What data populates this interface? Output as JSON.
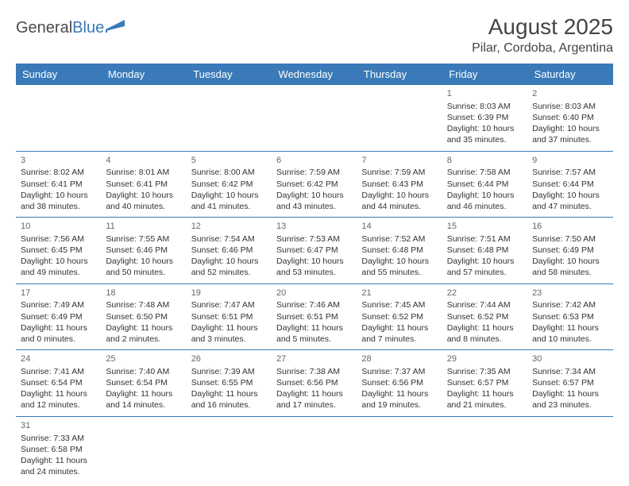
{
  "brand": {
    "general": "General",
    "blue": "Blue"
  },
  "title": "August 2025",
  "location": "Pilar, Cordoba, Argentina",
  "colors": {
    "header_bg": "#3a7ab8",
    "header_text": "#ffffff",
    "border": "#3a7ab8",
    "text": "#333333",
    "daynum": "#666666"
  },
  "day_headers": [
    "Sunday",
    "Monday",
    "Tuesday",
    "Wednesday",
    "Thursday",
    "Friday",
    "Saturday"
  ],
  "weeks": [
    [
      null,
      null,
      null,
      null,
      null,
      {
        "n": "1",
        "sr": "Sunrise: 8:03 AM",
        "ss": "Sunset: 6:39 PM",
        "d1": "Daylight: 10 hours",
        "d2": "and 35 minutes."
      },
      {
        "n": "2",
        "sr": "Sunrise: 8:03 AM",
        "ss": "Sunset: 6:40 PM",
        "d1": "Daylight: 10 hours",
        "d2": "and 37 minutes."
      }
    ],
    [
      {
        "n": "3",
        "sr": "Sunrise: 8:02 AM",
        "ss": "Sunset: 6:41 PM",
        "d1": "Daylight: 10 hours",
        "d2": "and 38 minutes."
      },
      {
        "n": "4",
        "sr": "Sunrise: 8:01 AM",
        "ss": "Sunset: 6:41 PM",
        "d1": "Daylight: 10 hours",
        "d2": "and 40 minutes."
      },
      {
        "n": "5",
        "sr": "Sunrise: 8:00 AM",
        "ss": "Sunset: 6:42 PM",
        "d1": "Daylight: 10 hours",
        "d2": "and 41 minutes."
      },
      {
        "n": "6",
        "sr": "Sunrise: 7:59 AM",
        "ss": "Sunset: 6:42 PM",
        "d1": "Daylight: 10 hours",
        "d2": "and 43 minutes."
      },
      {
        "n": "7",
        "sr": "Sunrise: 7:59 AM",
        "ss": "Sunset: 6:43 PM",
        "d1": "Daylight: 10 hours",
        "d2": "and 44 minutes."
      },
      {
        "n": "8",
        "sr": "Sunrise: 7:58 AM",
        "ss": "Sunset: 6:44 PM",
        "d1": "Daylight: 10 hours",
        "d2": "and 46 minutes."
      },
      {
        "n": "9",
        "sr": "Sunrise: 7:57 AM",
        "ss": "Sunset: 6:44 PM",
        "d1": "Daylight: 10 hours",
        "d2": "and 47 minutes."
      }
    ],
    [
      {
        "n": "10",
        "sr": "Sunrise: 7:56 AM",
        "ss": "Sunset: 6:45 PM",
        "d1": "Daylight: 10 hours",
        "d2": "and 49 minutes."
      },
      {
        "n": "11",
        "sr": "Sunrise: 7:55 AM",
        "ss": "Sunset: 6:46 PM",
        "d1": "Daylight: 10 hours",
        "d2": "and 50 minutes."
      },
      {
        "n": "12",
        "sr": "Sunrise: 7:54 AM",
        "ss": "Sunset: 6:46 PM",
        "d1": "Daylight: 10 hours",
        "d2": "and 52 minutes."
      },
      {
        "n": "13",
        "sr": "Sunrise: 7:53 AM",
        "ss": "Sunset: 6:47 PM",
        "d1": "Daylight: 10 hours",
        "d2": "and 53 minutes."
      },
      {
        "n": "14",
        "sr": "Sunrise: 7:52 AM",
        "ss": "Sunset: 6:48 PM",
        "d1": "Daylight: 10 hours",
        "d2": "and 55 minutes."
      },
      {
        "n": "15",
        "sr": "Sunrise: 7:51 AM",
        "ss": "Sunset: 6:48 PM",
        "d1": "Daylight: 10 hours",
        "d2": "and 57 minutes."
      },
      {
        "n": "16",
        "sr": "Sunrise: 7:50 AM",
        "ss": "Sunset: 6:49 PM",
        "d1": "Daylight: 10 hours",
        "d2": "and 58 minutes."
      }
    ],
    [
      {
        "n": "17",
        "sr": "Sunrise: 7:49 AM",
        "ss": "Sunset: 6:49 PM",
        "d1": "Daylight: 11 hours",
        "d2": "and 0 minutes."
      },
      {
        "n": "18",
        "sr": "Sunrise: 7:48 AM",
        "ss": "Sunset: 6:50 PM",
        "d1": "Daylight: 11 hours",
        "d2": "and 2 minutes."
      },
      {
        "n": "19",
        "sr": "Sunrise: 7:47 AM",
        "ss": "Sunset: 6:51 PM",
        "d1": "Daylight: 11 hours",
        "d2": "and 3 minutes."
      },
      {
        "n": "20",
        "sr": "Sunrise: 7:46 AM",
        "ss": "Sunset: 6:51 PM",
        "d1": "Daylight: 11 hours",
        "d2": "and 5 minutes."
      },
      {
        "n": "21",
        "sr": "Sunrise: 7:45 AM",
        "ss": "Sunset: 6:52 PM",
        "d1": "Daylight: 11 hours",
        "d2": "and 7 minutes."
      },
      {
        "n": "22",
        "sr": "Sunrise: 7:44 AM",
        "ss": "Sunset: 6:52 PM",
        "d1": "Daylight: 11 hours",
        "d2": "and 8 minutes."
      },
      {
        "n": "23",
        "sr": "Sunrise: 7:42 AM",
        "ss": "Sunset: 6:53 PM",
        "d1": "Daylight: 11 hours",
        "d2": "and 10 minutes."
      }
    ],
    [
      {
        "n": "24",
        "sr": "Sunrise: 7:41 AM",
        "ss": "Sunset: 6:54 PM",
        "d1": "Daylight: 11 hours",
        "d2": "and 12 minutes."
      },
      {
        "n": "25",
        "sr": "Sunrise: 7:40 AM",
        "ss": "Sunset: 6:54 PM",
        "d1": "Daylight: 11 hours",
        "d2": "and 14 minutes."
      },
      {
        "n": "26",
        "sr": "Sunrise: 7:39 AM",
        "ss": "Sunset: 6:55 PM",
        "d1": "Daylight: 11 hours",
        "d2": "and 16 minutes."
      },
      {
        "n": "27",
        "sr": "Sunrise: 7:38 AM",
        "ss": "Sunset: 6:56 PM",
        "d1": "Daylight: 11 hours",
        "d2": "and 17 minutes."
      },
      {
        "n": "28",
        "sr": "Sunrise: 7:37 AM",
        "ss": "Sunset: 6:56 PM",
        "d1": "Daylight: 11 hours",
        "d2": "and 19 minutes."
      },
      {
        "n": "29",
        "sr": "Sunrise: 7:35 AM",
        "ss": "Sunset: 6:57 PM",
        "d1": "Daylight: 11 hours",
        "d2": "and 21 minutes."
      },
      {
        "n": "30",
        "sr": "Sunrise: 7:34 AM",
        "ss": "Sunset: 6:57 PM",
        "d1": "Daylight: 11 hours",
        "d2": "and 23 minutes."
      }
    ],
    [
      {
        "n": "31",
        "sr": "Sunrise: 7:33 AM",
        "ss": "Sunset: 6:58 PM",
        "d1": "Daylight: 11 hours",
        "d2": "and 24 minutes."
      },
      null,
      null,
      null,
      null,
      null,
      null
    ]
  ]
}
